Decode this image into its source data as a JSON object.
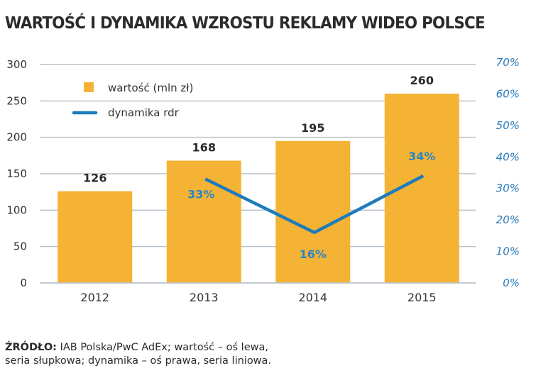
{
  "title": "WARTOŚĆ I DYNAMIKA WZROSTU REKLAMY WIDEO POLSCE",
  "legend": {
    "bar_label": "wartość (mln zł)",
    "line_label": "dynamika rdr"
  },
  "source": {
    "label": "ŹRÓDŁO:",
    "line1": "IAB Polska/PwC AdEx; wartość – oś lewa,",
    "line2": "seria słupkowa; dynamika – oś prawa, seria liniowa."
  },
  "colors": {
    "bar": "#f5b335",
    "line": "#1c7bbd",
    "grid": "#b9c3cc",
    "right_axis_text": "#2a7ab8"
  },
  "chart_data": {
    "type": "bar+line",
    "title": "WARTOŚĆ I DYNAMIKA WZROSTU REKLAMY WIDEO POLSCE",
    "categories": [
      "2012",
      "2013",
      "2014",
      "2015"
    ],
    "series": [
      {
        "name": "wartość (mln zł)",
        "type": "bar",
        "axis": "left",
        "values": [
          126,
          168,
          195,
          260
        ],
        "labels": [
          "126",
          "168",
          "195",
          "260"
        ]
      },
      {
        "name": "dynamika rdr",
        "type": "line",
        "axis": "right",
        "values": [
          null,
          33,
          16,
          34
        ],
        "labels": [
          "",
          "33%",
          "16%",
          "34%"
        ]
      }
    ],
    "left_axis": {
      "ylim": [
        0,
        300
      ],
      "ticks": [
        "0",
        "50",
        "100",
        "150",
        "200",
        "250",
        "300"
      ]
    },
    "right_axis": {
      "ylim": [
        0,
        70
      ],
      "ticks": [
        "0%",
        "10%",
        "20%",
        "30%",
        "40%",
        "50%",
        "60%",
        "70%"
      ]
    },
    "xlabel": "",
    "ylabel": "",
    "grid": true,
    "legend_position": "top-left inside"
  }
}
